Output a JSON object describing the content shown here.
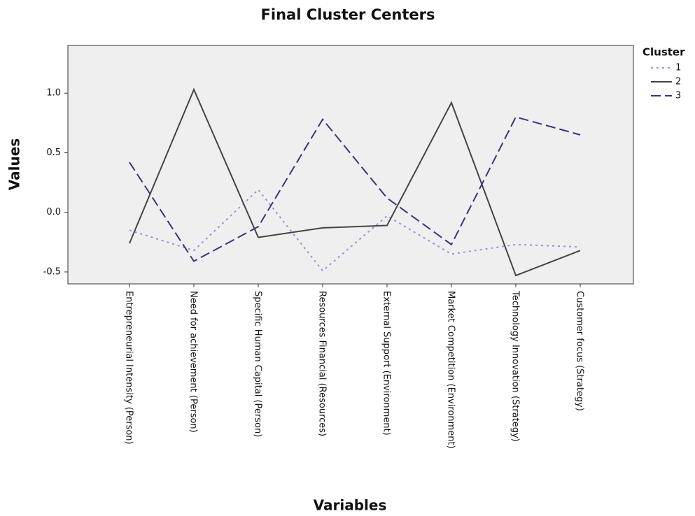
{
  "chart_data": {
    "type": "line",
    "title": "Final Cluster Centers",
    "x_label": "Variables",
    "y_label": "Values",
    "legend_title": "Cluster",
    "legend": "top-right",
    "categories": [
      "Entrepreneurial Intensity (Person)",
      "Need for achievement (Person)",
      "Specific Human Capital (Person)",
      "Resources Financial (Resources)",
      "External Support (Environment)",
      "Market Competition (Environment)",
      "Technology Innovation (Strategy)",
      "Customer focus (Strategy)"
    ],
    "series": [
      {
        "name": "1",
        "color": "#9a8ee0",
        "dash": "dotted",
        "values": [
          -0.15,
          -0.32,
          0.19,
          -0.49,
          -0.03,
          -0.35,
          -0.27,
          -0.29
        ]
      },
      {
        "name": "2",
        "color": "#444444",
        "dash": "solid",
        "values": [
          -0.26,
          1.03,
          -0.21,
          -0.13,
          -0.11,
          0.92,
          -0.53,
          -0.32
        ]
      },
      {
        "name": "3",
        "color": "#3a3380",
        "dash": "dashed",
        "values": [
          0.42,
          -0.41,
          -0.12,
          0.78,
          0.12,
          -0.27,
          0.8,
          0.65
        ]
      }
    ],
    "ylim": [
      -0.6,
      1.4
    ],
    "yticks": [
      {
        "value": 1,
        "label": "1.0"
      },
      0.5,
      {
        "value": 0,
        "label": "0.0"
      },
      -0.5
    ]
  }
}
